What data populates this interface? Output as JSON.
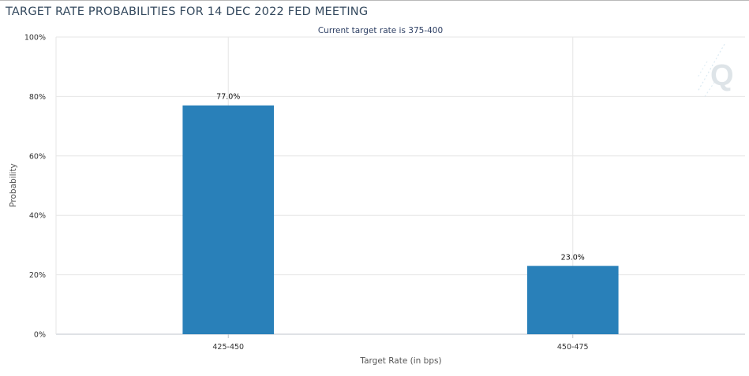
{
  "title": "TARGET RATE PROBABILITIES FOR 14 DEC 2022 FED MEETING",
  "chart_data": {
    "type": "bar",
    "subtitle": "Current target rate is 375-400",
    "categories": [
      "425-450",
      "450-475"
    ],
    "values": [
      77.0,
      23.0
    ],
    "data_labels": [
      "77.0%",
      "23.0%"
    ],
    "xlabel": "Target Rate (in bps)",
    "ylabel": "Probability",
    "ylim": [
      0,
      100
    ],
    "yticks": [
      "0%",
      "20%",
      "40%",
      "60%",
      "80%",
      "100%"
    ],
    "grid": true,
    "bar_color": "#2980b9",
    "watermark_icon": "quikstrike-q-logo"
  }
}
